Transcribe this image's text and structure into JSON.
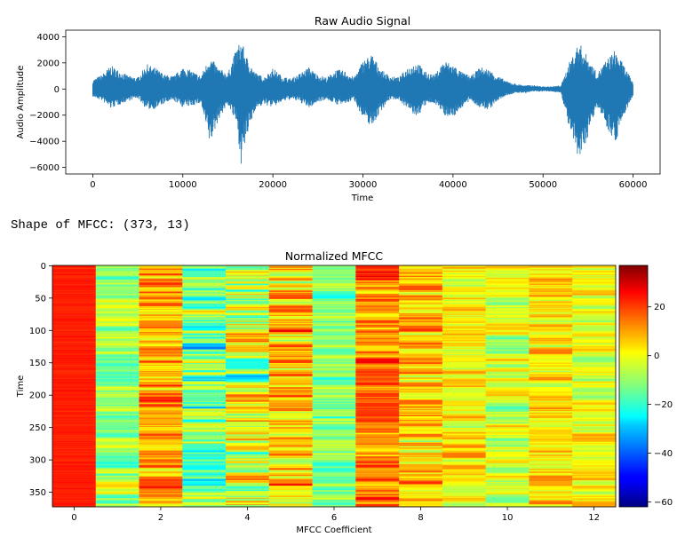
{
  "chart_data": [
    {
      "type": "line",
      "title": "Raw Audio Signal",
      "xlabel": "Time",
      "ylabel": "Audio Amplitude",
      "xlim": [
        -3000,
        63000
      ],
      "ylim": [
        -6500,
        4500
      ],
      "xticks": [
        0,
        10000,
        20000,
        30000,
        40000,
        50000,
        60000
      ],
      "xtick_labels": [
        "0",
        "10000",
        "20000",
        "30000",
        "40000",
        "50000",
        "60000"
      ],
      "yticks": [
        4000,
        2000,
        0,
        -2000,
        -4000,
        -6000
      ],
      "ytick_labels": [
        "4000",
        "2000",
        "0",
        "−2000",
        "−4000",
        "−6000"
      ],
      "series": [
        {
          "name": "signal",
          "color": "#1f77b4",
          "n_samples": 60000,
          "envelope": {
            "x": [
              0,
              1000,
              2000,
              3000,
              4000,
              5000,
              6000,
              7000,
              8000,
              9000,
              10000,
              11000,
              12000,
              13000,
              14000,
              15000,
              16000,
              16500,
              17000,
              18000,
              19000,
              20000,
              21000,
              22000,
              23000,
              24000,
              25000,
              26000,
              27000,
              28000,
              29000,
              30000,
              31000,
              32000,
              33000,
              34000,
              35000,
              36000,
              37000,
              38000,
              39000,
              40000,
              41000,
              42000,
              43000,
              44000,
              45000,
              46000,
              47000,
              48000,
              49000,
              50000,
              51000,
              52000,
              53000,
              54000,
              55000,
              56000,
              57000,
              58000,
              59000,
              60000
            ],
            "max": [
              700,
              1100,
              1800,
              1400,
              1000,
              900,
              1900,
              1600,
              1100,
              1000,
              1700,
              1400,
              1000,
              2500,
              1600,
              1200,
              3200,
              3800,
              2600,
              1300,
              900,
              1600,
              1000,
              800,
              1200,
              1700,
              1100,
              900,
              1500,
              1400,
              900,
              2200,
              2700,
              1500,
              1000,
              900,
              1700,
              2100,
              1300,
              1100,
              2200,
              1900,
              1300,
              1000,
              1700,
              1500,
              1000,
              600,
              400,
              300,
              300,
              200,
              200,
              300,
              2200,
              3600,
              2400,
              1200,
              2200,
              3000,
              1800,
              500
            ],
            "min": [
              -600,
              -900,
              -1500,
              -1200,
              -900,
              -700,
              -1600,
              -1500,
              -1100,
              -900,
              -1400,
              -1300,
              -1100,
              -4300,
              -2300,
              -1200,
              -2800,
              -5900,
              -4000,
              -1600,
              -1200,
              -1400,
              -1000,
              -800,
              -1000,
              -1500,
              -1000,
              -800,
              -1200,
              -1200,
              -800,
              -2300,
              -2900,
              -1700,
              -800,
              -800,
              -1600,
              -2200,
              -1200,
              -1100,
              -2000,
              -2200,
              -1400,
              -900,
              -1500,
              -1600,
              -900,
              -500,
              -300,
              -300,
              -200,
              -200,
              -200,
              -300,
              -3400,
              -5700,
              -3600,
              -1300,
              -2800,
              -4200,
              -2000,
              -500
            ]
          }
        }
      ]
    },
    {
      "type": "heatmap",
      "title": "Normalized MFCC",
      "xlabel": "MFCC Coefficient",
      "ylabel": "Time",
      "shape": [
        373,
        13
      ],
      "xticks": [
        0,
        2,
        4,
        6,
        8,
        10,
        12
      ],
      "xtick_labels": [
        "0",
        "2",
        "4",
        "6",
        "8",
        "10",
        "12"
      ],
      "yticks": [
        0,
        50,
        100,
        150,
        200,
        250,
        300,
        350
      ],
      "ytick_labels": [
        "0",
        "50",
        "100",
        "150",
        "200",
        "250",
        "300",
        "350"
      ],
      "colormap": "jet",
      "color_range": [
        -62,
        37
      ],
      "colorbar_ticks": [
        20,
        0,
        -20,
        -40,
        -60
      ],
      "colorbar_tick_labels": [
        "20",
        "0",
        "−20",
        "−40",
        "−60"
      ],
      "column_means": [
        22,
        -10,
        8,
        -15,
        -5,
        5,
        -12,
        12,
        5,
        0,
        -5,
        2,
        -2
      ],
      "column_spread": [
        4,
        22,
        30,
        40,
        42,
        34,
        22,
        28,
        30,
        22,
        24,
        24,
        22
      ]
    }
  ],
  "console": {
    "shape_line": "Shape of MFCC: (373, 13)"
  }
}
